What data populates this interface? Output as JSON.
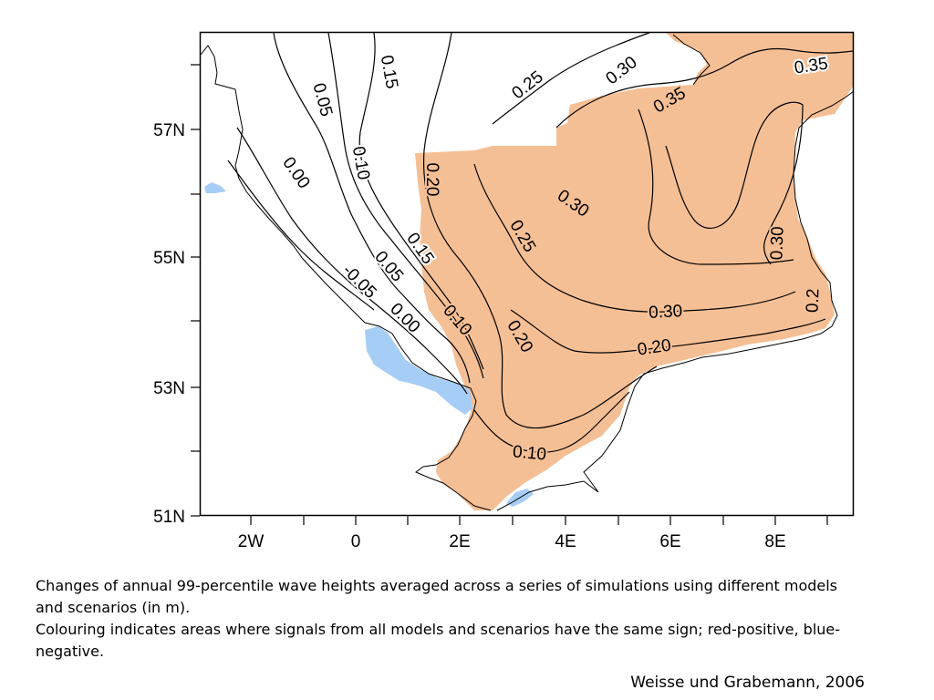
{
  "map": {
    "axis": {
      "lat_labels": [
        "57N",
        "55N",
        "53N",
        "51N"
      ],
      "lon_labels": [
        "2W",
        "0",
        "2E",
        "4E",
        "6E",
        "8E"
      ]
    },
    "colors": {
      "positive": "#f5bf95",
      "negative": "#a6cdf5",
      "contour": "#000000",
      "frame": "#000000"
    },
    "contour_labels": [
      {
        "id": "c1",
        "text": "0.15"
      },
      {
        "id": "c2",
        "text": "0.05"
      },
      {
        "id": "c3",
        "text": "0.10"
      },
      {
        "id": "c4",
        "text": "0.00"
      },
      {
        "id": "c5",
        "text": "0.25"
      },
      {
        "id": "c6",
        "text": "0.30"
      },
      {
        "id": "c7",
        "text": "0.35"
      },
      {
        "id": "c8",
        "text": "0.35"
      },
      {
        "id": "c9",
        "text": "0.20"
      },
      {
        "id": "c10",
        "text": "0.30"
      },
      {
        "id": "c11",
        "text": "0.25"
      },
      {
        "id": "c12",
        "text": "0.30"
      },
      {
        "id": "c13",
        "text": "0.15"
      },
      {
        "id": "c14",
        "text": "0.05"
      },
      {
        "id": "c15",
        "text": "-0.05"
      },
      {
        "id": "c16",
        "text": "0.00"
      },
      {
        "id": "c17",
        "text": "0.10"
      },
      {
        "id": "c18",
        "text": "0.20"
      },
      {
        "id": "c19",
        "text": "0.30"
      },
      {
        "id": "c20",
        "text": "0.20"
      },
      {
        "id": "c21",
        "text": "0.2"
      },
      {
        "id": "c22",
        "text": "0.10"
      }
    ]
  },
  "caption": {
    "line1": "Changes of annual 99-percentile wave heights averaged across a series of simulations using different models and scenarios (in m).",
    "line2": "Colouring indicates areas where signals from all models and scenarios have the same sign; red-positive, blue-negative."
  },
  "credit": "Weisse und Grabemann, 2006"
}
